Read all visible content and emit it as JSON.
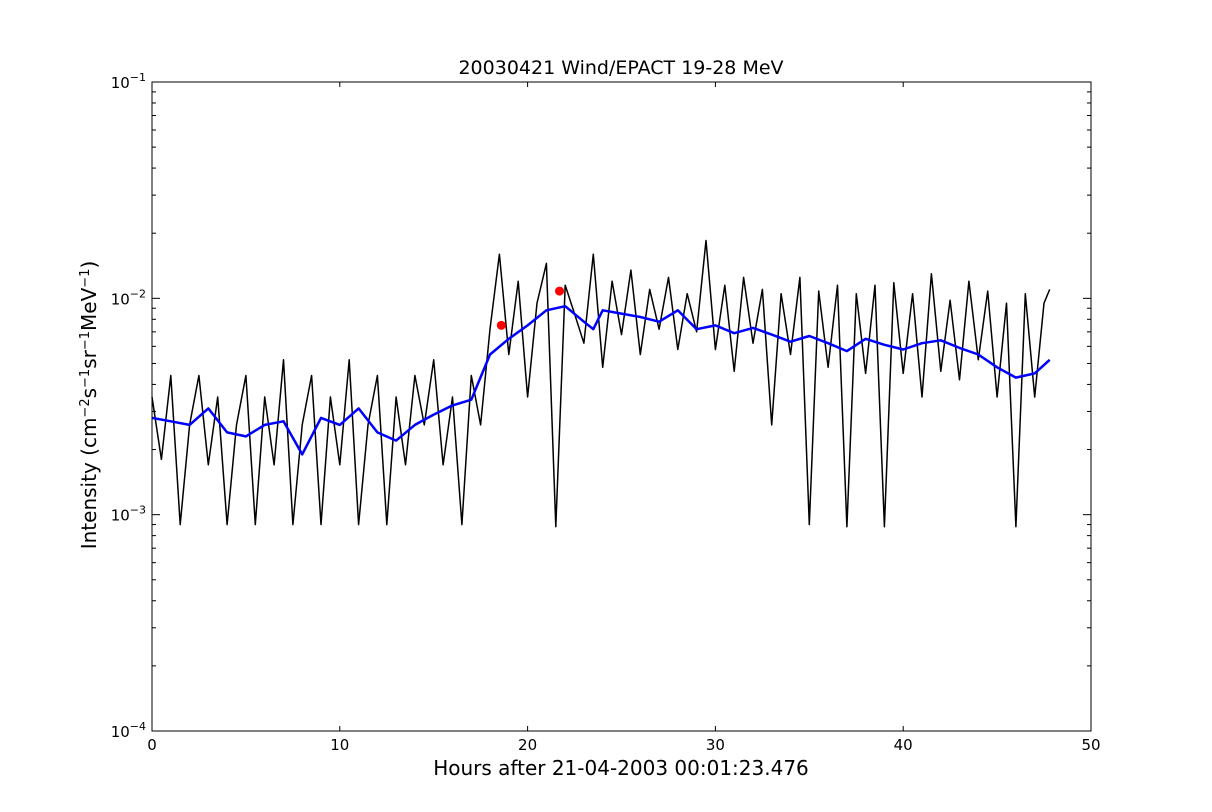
{
  "chart_data": {
    "type": "line",
    "title": "20030421 Wind/EPACT 19-28 MeV",
    "xlabel": "Hours after 21-04-2003 00:01:23.476",
    "ylabel": "Intensity (cm$^{-2}$s$^{-1}$sr$^{-1}$MeV$^{-1}$)",
    "xlim": [
      0,
      50
    ],
    "ylim": [
      0.0001,
      0.1
    ],
    "yscale": "log",
    "xticks": [
      0,
      10,
      20,
      30,
      40,
      50
    ],
    "xtick_labels": [
      "0",
      "10",
      "20",
      "30",
      "40",
      "50"
    ],
    "yticks": [
      0.0001,
      0.001,
      0.01,
      0.1
    ],
    "ytick_labels": [
      {
        "base": "10",
        "exp": "-4"
      },
      {
        "base": "10",
        "exp": "-3"
      },
      {
        "base": "10",
        "exp": "-2"
      },
      {
        "base": "10",
        "exp": "-1"
      }
    ],
    "grid": false,
    "series": [
      {
        "color": "#000000",
        "style": "raw",
        "x": [
          0,
          0.5,
          1,
          1.5,
          2,
          2.5,
          3,
          3.5,
          4,
          4.5,
          5,
          5.5,
          6,
          6.5,
          7,
          7.5,
          8,
          8.5,
          9,
          9.5,
          10,
          10.5,
          11,
          11.5,
          12,
          12.5,
          13,
          13.5,
          14,
          14.5,
          15,
          15.5,
          16,
          16.5,
          17,
          17.5,
          18,
          18.5,
          19,
          19.5,
          20,
          20.5,
          21,
          21.5,
          22,
          22.5,
          23,
          23.5,
          24,
          24.5,
          25,
          25.5,
          26,
          26.5,
          27,
          27.5,
          28,
          28.5,
          29,
          29.5,
          30,
          30.5,
          31,
          31.5,
          32,
          32.5,
          33,
          33.5,
          34,
          34.5,
          35,
          35.5,
          36,
          36.5,
          37,
          37.5,
          38,
          38.5,
          39,
          39.5,
          40,
          40.5,
          41,
          41.5,
          42,
          42.5,
          43,
          43.5,
          44,
          44.5,
          45,
          45.5,
          46,
          46.5,
          47,
          47.5,
          47.8
        ],
        "y": [
          0.0035,
          0.0018,
          0.0044,
          0.0009,
          0.0026,
          0.0044,
          0.0017,
          0.0035,
          0.0009,
          0.0026,
          0.0044,
          0.0009,
          0.0035,
          0.0017,
          0.0052,
          0.0009,
          0.0026,
          0.0044,
          0.0009,
          0.0035,
          0.0017,
          0.0052,
          0.0009,
          0.0026,
          0.0044,
          0.0009,
          0.0035,
          0.0017,
          0.0044,
          0.0026,
          0.0052,
          0.0017,
          0.0035,
          0.0009,
          0.0044,
          0.0026,
          0.0072,
          0.016,
          0.0055,
          0.012,
          0.0035,
          0.0095,
          0.0145,
          0.00088,
          0.0115,
          0.0085,
          0.0062,
          0.016,
          0.0048,
          0.012,
          0.0068,
          0.0135,
          0.0055,
          0.011,
          0.0072,
          0.0125,
          0.0058,
          0.0105,
          0.007,
          0.0185,
          0.0058,
          0.0115,
          0.0046,
          0.0125,
          0.0062,
          0.011,
          0.0026,
          0.0105,
          0.0055,
          0.0125,
          0.0009,
          0.0108,
          0.0048,
          0.0115,
          0.00088,
          0.0105,
          0.0045,
          0.0115,
          0.00088,
          0.0118,
          0.0045,
          0.0105,
          0.0035,
          0.013,
          0.0046,
          0.0098,
          0.0042,
          0.012,
          0.0052,
          0.0108,
          0.0035,
          0.0095,
          0.00088,
          0.0105,
          0.0035,
          0.0095,
          0.011
        ]
      },
      {
        "color": "#0000ff",
        "style": "smoothed",
        "x": [
          0,
          1,
          2,
          3,
          4,
          5,
          6,
          7,
          8,
          9,
          10,
          11,
          12,
          13,
          14,
          15,
          16,
          17,
          18,
          19,
          20,
          21,
          22,
          23,
          23.5,
          24,
          25,
          26,
          27,
          28,
          29,
          30,
          31,
          32,
          33,
          34,
          35,
          36,
          37,
          38,
          39,
          40,
          41,
          42,
          43,
          44,
          45,
          46,
          47,
          47.8
        ],
        "y": [
          0.0028,
          0.0027,
          0.0026,
          0.0031,
          0.0024,
          0.0023,
          0.0026,
          0.0027,
          0.0019,
          0.0028,
          0.0026,
          0.0031,
          0.0024,
          0.0022,
          0.0026,
          0.0029,
          0.0032,
          0.0034,
          0.0055,
          0.0065,
          0.0075,
          0.0088,
          0.0092,
          0.0078,
          0.0072,
          0.0088,
          0.0085,
          0.0082,
          0.0078,
          0.0088,
          0.0072,
          0.0075,
          0.0069,
          0.0073,
          0.0068,
          0.0063,
          0.0067,
          0.0062,
          0.0057,
          0.0065,
          0.0061,
          0.0058,
          0.0062,
          0.0064,
          0.0059,
          0.0055,
          0.0048,
          0.0043,
          0.0045,
          0.0052
        ]
      }
    ],
    "markers": [
      {
        "x": 18.6,
        "y": 0.0075,
        "color": "#ff0000"
      },
      {
        "x": 21.7,
        "y": 0.0108,
        "color": "#ff0000"
      }
    ]
  }
}
